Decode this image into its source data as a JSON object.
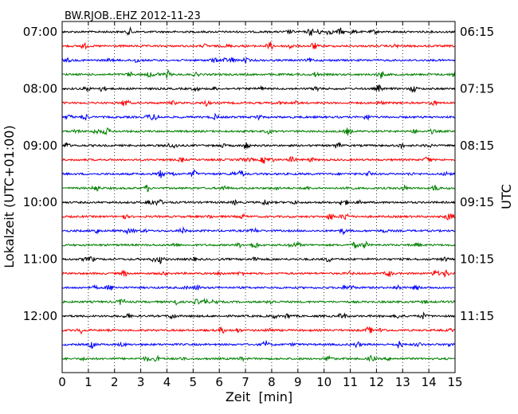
{
  "chart_data": {
    "type": "line",
    "title": "BW.RJOB..EHZ 2012-11-23",
    "xlabel": "Zeit  [min]",
    "ylabel_left": "Lokalzeit (UTC+01:00)",
    "ylabel_right": "UTC",
    "xlim": [
      0,
      15
    ],
    "x_ticks": [
      "0",
      "1",
      "2",
      "3",
      "4",
      "5",
      "6",
      "7",
      "8",
      "9",
      "10",
      "11",
      "12",
      "13",
      "14",
      "15"
    ],
    "left_tick_labels": [
      "07:00",
      "08:00",
      "09:00",
      "10:00",
      "11:00",
      "12:00"
    ],
    "right_tick_labels": [
      "06:15",
      "07:15",
      "08:15",
      "09:15",
      "10:15",
      "11:15"
    ],
    "trace_count": 24,
    "traces_per_tick": 4,
    "grid_x": "dotted vertical at each minute",
    "trace_colors": [
      "#000000",
      "#ff0000",
      "#0000ff",
      "#008000"
    ]
  }
}
